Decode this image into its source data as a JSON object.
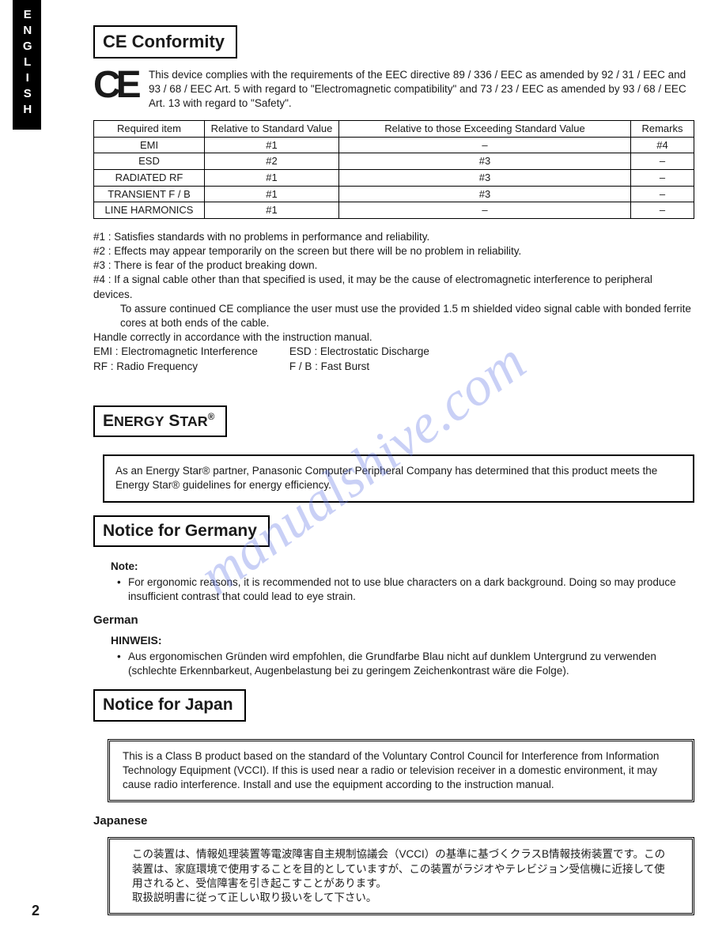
{
  "lang_tab": "ENGLISH",
  "page_number": "2",
  "watermark": "manualshive.com",
  "ce": {
    "title": "CE Conformity",
    "mark": "CE",
    "para": "This device complies with the requirements of the EEC directive 89 / 336 / EEC as amended by 92 / 31 / EEC and 93 / 68 / EEC Art. 5 with regard to \"Electromagnetic compatibility\" and 73 / 23 / EEC as amended by 93 / 68 / EEC Art. 13 with regard to \"Safety\"."
  },
  "table": {
    "columns": [
      "Required item",
      "Relative to Standard Value",
      "Relative to those Exceeding Standard Value",
      "Remarks"
    ],
    "rows": [
      [
        "EMI",
        "#1",
        "–",
        "#4"
      ],
      [
        "ESD",
        "#2",
        "#3",
        "–"
      ],
      [
        "RADIATED RF",
        "#1",
        "#3",
        "–"
      ],
      [
        "TRANSIENT F / B",
        "#1",
        "#3",
        "–"
      ],
      [
        "LINE HARMONICS",
        "#1",
        "–",
        "–"
      ]
    ]
  },
  "notes": {
    "n1": "#1 : Satisfies standards with no problems in performance and reliability.",
    "n2": "#2 : Effects may appear temporarily on the screen but there will be no problem in reliability.",
    "n3": "#3 : There is fear of the product breaking down.",
    "n4a": "#4 : If a signal cable other than that specified is used, it may be the cause of electromagnetic interference to peripheral devices.",
    "n4b": "To assure continued CE compliance the user must use the provided 1.5 m shielded video signal cable with bonded ferrite cores at both ends of the cable.",
    "handle": "Handle correctly in accordance with the instruction manual.",
    "emi": "EMI : Electromagnetic Interference",
    "esd": "ESD : Electrostatic Discharge",
    "rf": "RF   : Radio Frequency",
    "fb": "F / B : Fast Burst"
  },
  "energy": {
    "title_html": "Energy Star®",
    "box": "As an Energy Star® partner, Panasonic Computer Peripheral Company has determined that this product meets the Energy Star® guidelines for energy efficiency."
  },
  "germany": {
    "title": "Notice for Germany",
    "note_label": "Note:",
    "note_text": "For ergonomic reasons, it is recommended not to use blue characters on a dark background. Doing so may produce insufficient contrast that could lead to eye strain.",
    "german_heading": "German",
    "hinweis_label": "HINWEIS:",
    "hinweis_text": "Aus ergonomischen Gründen wird empfohlen, die Grundfarbe Blau nicht auf dunklem Untergrund zu verwenden (schlechte Erkennbarkeut, Augenbelastung bei zu geringem Zeichenkontrast wäre die Folge)."
  },
  "japan": {
    "title": "Notice for Japan",
    "box_en": "This is a Class B product based on the standard of the Voluntary Control Council for Interference from Information Technology Equipment (VCCI). If this is used near a radio or television receiver in a domestic environment, it may cause radio interference.  Install and use the equipment according to the instruction manual.",
    "jp_heading": "Japanese",
    "box_jp": "この装置は、情報処理装置等電波障害自主規制協議会（VCCI）の基準に基づくクラスB情報技術装置です。この装置は、家庭環境で使用することを目的としていますが、この装置がラジオやテレビジョン受信機に近接して使用されると、受信障害を引き起こすことがあります。\n取扱説明書に従って正しい取り扱いをして下さい。"
  }
}
